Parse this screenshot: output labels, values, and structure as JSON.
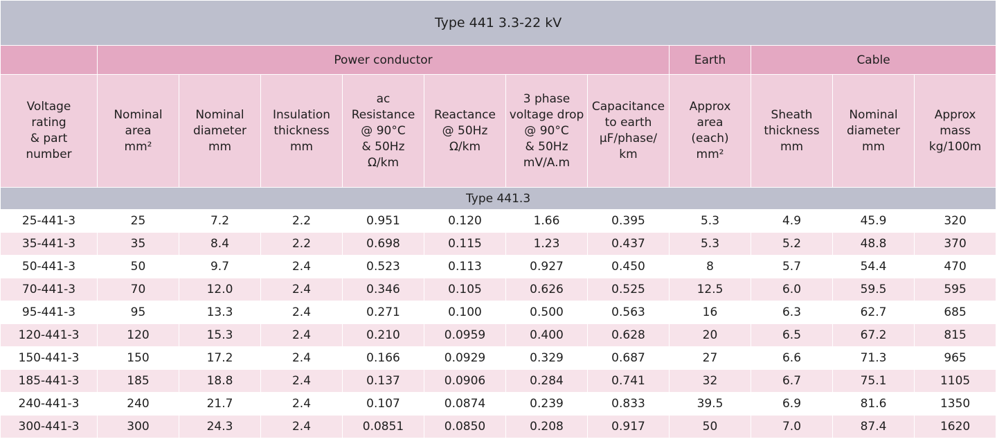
{
  "title": "Type 441  3.3-22 kV",
  "groups": {
    "power_conductor": "Power conductor",
    "earth": "Earth",
    "cable": "Cable"
  },
  "headers": [
    "Voltage\nrating\n& part\nnumber",
    "Nominal\narea\nmm²",
    "Nominal\ndiameter\nmm",
    "Insulation\nthickness\nmm",
    "ac\nResistance\n@ 90°C\n& 50Hz\nΩ/km",
    "Reactance\n@ 50Hz\nΩ/km",
    "3 phase\nvoltage drop\n@ 90°C\n& 50Hz\nmV/A.m",
    "Capacitance\nto earth\nμF/phase/\nkm",
    "Approx\narea\n(each)\nmm²",
    "Sheath\nthickness\nmm",
    "Nominal\ndiameter\nmm",
    "Approx\nmass\nkg/100m"
  ],
  "section_label": "Type 441.3",
  "rows": [
    [
      "25-441-3",
      "25",
      "7.2",
      "2.2",
      "0.951",
      "0.120",
      "1.66",
      "0.395",
      "5.3",
      "4.9",
      "45.9",
      "320"
    ],
    [
      "35-441-3",
      "35",
      "8.4",
      "2.2",
      "0.698",
      "0.115",
      "1.23",
      "0.437",
      "5.3",
      "5.2",
      "48.8",
      "370"
    ],
    [
      "50-441-3",
      "50",
      "9.7",
      "2.4",
      "0.523",
      "0.113",
      "0.927",
      "0.450",
      "8",
      "5.7",
      "54.4",
      "470"
    ],
    [
      "70-441-3",
      "70",
      "12.0",
      "2.4",
      "0.346",
      "0.105",
      "0.626",
      "0.525",
      "12.5",
      "6.0",
      "59.5",
      "595"
    ],
    [
      "95-441-3",
      "95",
      "13.3",
      "2.4",
      "0.271",
      "0.100",
      "0.500",
      "0.563",
      "16",
      "6.3",
      "62.7",
      "685"
    ],
    [
      "120-441-3",
      "120",
      "15.3",
      "2.4",
      "0.210",
      "0.0959",
      "0.400",
      "0.628",
      "20",
      "6.5",
      "67.2",
      "815"
    ],
    [
      "150-441-3",
      "150",
      "17.2",
      "2.4",
      "0.166",
      "0.0929",
      "0.329",
      "0.687",
      "27",
      "6.6",
      "71.3",
      "965"
    ],
    [
      "185-441-3",
      "185",
      "18.8",
      "2.4",
      "0.137",
      "0.0906",
      "0.284",
      "0.741",
      "32",
      "6.7",
      "75.1",
      "1105"
    ],
    [
      "240-441-3",
      "240",
      "21.7",
      "2.4",
      "0.107",
      "0.0874",
      "0.239",
      "0.833",
      "39.5",
      "6.9",
      "81.6",
      "1350"
    ],
    [
      "300-441-3",
      "300",
      "24.3",
      "2.4",
      "0.0851",
      "0.0850",
      "0.208",
      "0.917",
      "50",
      "7.0",
      "87.4",
      "1620"
    ]
  ],
  "colors": {
    "title_band": "#bdbfcd",
    "group_band": "#e4a8c2",
    "header_band": "#f0cedc",
    "alt_row": "#f7e3ea"
  }
}
